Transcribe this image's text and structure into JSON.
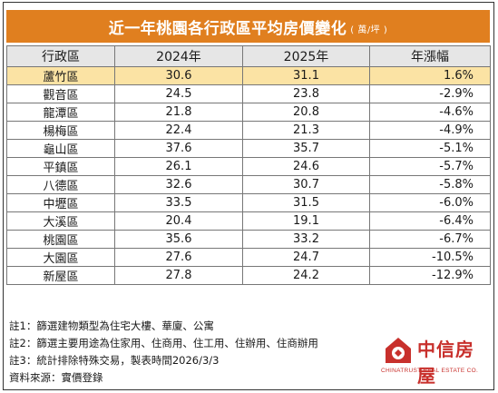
{
  "title": "近一年桃園各行政區平均房價變化",
  "title_unit": "( 萬/坪 )",
  "columns": [
    "行政區",
    "2024年",
    "2025年",
    "年漲幅"
  ],
  "rows": [
    {
      "district": "蘆竹區",
      "y2024": "30.6",
      "y2025": "31.1",
      "change": "1.6%",
      "highlight": true
    },
    {
      "district": "觀音區",
      "y2024": "24.5",
      "y2025": "23.8",
      "change": "-2.9%"
    },
    {
      "district": "龍潭區",
      "y2024": "21.8",
      "y2025": "20.8",
      "change": "-4.6%"
    },
    {
      "district": "楊梅區",
      "y2024": "22.4",
      "y2025": "21.3",
      "change": "-4.9%"
    },
    {
      "district": "龜山區",
      "y2024": "37.6",
      "y2025": "35.7",
      "change": "-5.1%"
    },
    {
      "district": "平鎮區",
      "y2024": "26.1",
      "y2025": "24.6",
      "change": "-5.7%"
    },
    {
      "district": "八德區",
      "y2024": "32.6",
      "y2025": "30.7",
      "change": "-5.8%"
    },
    {
      "district": "中壢區",
      "y2024": "33.5",
      "y2025": "31.5",
      "change": "-6.0%"
    },
    {
      "district": "大溪區",
      "y2024": "20.4",
      "y2025": "19.1",
      "change": "-6.4%"
    },
    {
      "district": "桃園區",
      "y2024": "35.6",
      "y2025": "33.2",
      "change": "-6.7%"
    },
    {
      "district": "大園區",
      "y2024": "27.6",
      "y2025": "24.7",
      "change": "-10.5%"
    },
    {
      "district": "新屋區",
      "y2024": "27.8",
      "y2025": "24.2",
      "change": "-12.9%"
    }
  ],
  "notes": [
    "註1：篩選建物類型為住宅大樓、華廈、公寓",
    "註2：篩選主要用途為住家用、住商用、住工用、住辦用、住商辦用",
    "註3：統計排除特殊交易，製表時間2026/3/3",
    "資料來源：實價登錄"
  ],
  "logo": {
    "brand": "中信房屋",
    "english": "CHINATRUST REAL ESTATE CO."
  },
  "colors": {
    "header_bar": "#e07f1f",
    "highlight_row": "#fbe3a4",
    "column_header": "#e6e6e6",
    "logo_red": "#c8302c"
  }
}
